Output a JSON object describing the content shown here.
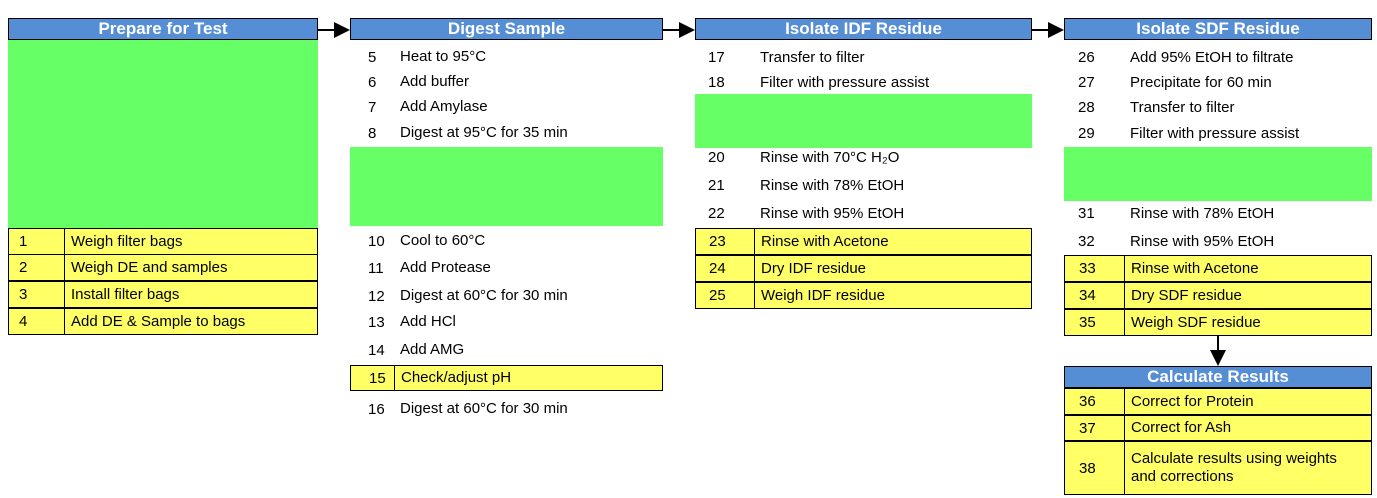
{
  "columns": [
    {
      "title": "Prepare for Test",
      "steps": [
        {
          "number": 1,
          "text": "Weigh filter bags",
          "highlight": true
        },
        {
          "number": 2,
          "text": "Weigh DE and samples",
          "highlight": true
        },
        {
          "number": 3,
          "text": "Install filter bags",
          "highlight": true
        },
        {
          "number": 4,
          "text": "Add DE & Sample to bags",
          "highlight": true
        }
      ]
    },
    {
      "title": "Digest Sample",
      "steps": [
        {
          "number": 5,
          "text": "Heat to 95°C",
          "highlight": false
        },
        {
          "number": 6,
          "text": "Add buffer",
          "highlight": false
        },
        {
          "number": 7,
          "text": "Add Amylase",
          "highlight": false
        },
        {
          "number": 8,
          "text": "Digest at 95°C for 35 min",
          "highlight": false
        },
        {
          "number": 10,
          "text": "Cool to 60°C",
          "highlight": false
        },
        {
          "number": 11,
          "text": "Add Protease",
          "highlight": false
        },
        {
          "number": 12,
          "text": "Digest at 60°C for 30 min",
          "highlight": false
        },
        {
          "number": 13,
          "text": "Add HCl",
          "highlight": false
        },
        {
          "number": 14,
          "text": "Add AMG",
          "highlight": false
        },
        {
          "number": 15,
          "text": "Check/adjust pH",
          "highlight": true
        },
        {
          "number": 16,
          "text": "Digest at 60°C for 30 min",
          "highlight": false
        }
      ]
    },
    {
      "title": "Isolate IDF Residue",
      "steps": [
        {
          "number": 17,
          "text": "Transfer to filter",
          "highlight": false
        },
        {
          "number": 18,
          "text": "Filter with pressure assist",
          "highlight": false
        },
        {
          "number": 20,
          "text": "Rinse with 70°C H₂O",
          "highlight": false
        },
        {
          "number": 21,
          "text": "Rinse with 78% EtOH",
          "highlight": false
        },
        {
          "number": 22,
          "text": "Rinse with 95% EtOH",
          "highlight": false
        },
        {
          "number": 23,
          "text": "Rinse with Acetone",
          "highlight": true
        },
        {
          "number": 24,
          "text": "Dry IDF residue",
          "highlight": true
        },
        {
          "number": 25,
          "text": "Weigh IDF residue",
          "highlight": true
        }
      ]
    },
    {
      "title": "Isolate SDF Residue",
      "steps": [
        {
          "number": 26,
          "text": "Add 95% EtOH to filtrate",
          "highlight": false
        },
        {
          "number": 27,
          "text": "Precipitate for 60 min",
          "highlight": false
        },
        {
          "number": 28,
          "text": "Transfer to filter",
          "highlight": false
        },
        {
          "number": 29,
          "text": "Filter with pressure assist",
          "highlight": false
        },
        {
          "number": 31,
          "text": "Rinse with 78% EtOH",
          "highlight": false
        },
        {
          "number": 32,
          "text": "Rinse with 95% EtOH",
          "highlight": false
        },
        {
          "number": 33,
          "text": "Rinse with Acetone",
          "highlight": true
        },
        {
          "number": 34,
          "text": "Dry SDF residue",
          "highlight": true
        },
        {
          "number": 35,
          "text": "Weigh SDF residue",
          "highlight": true
        }
      ]
    },
    {
      "title": "Calculate Results",
      "steps": [
        {
          "number": 36,
          "text": "Correct for Protein",
          "highlight": true
        },
        {
          "number": 37,
          "text": "Correct for Ash",
          "highlight": true
        },
        {
          "number": 38,
          "text": "Calculate results using weights and corrections",
          "highlight": true
        }
      ]
    }
  ]
}
